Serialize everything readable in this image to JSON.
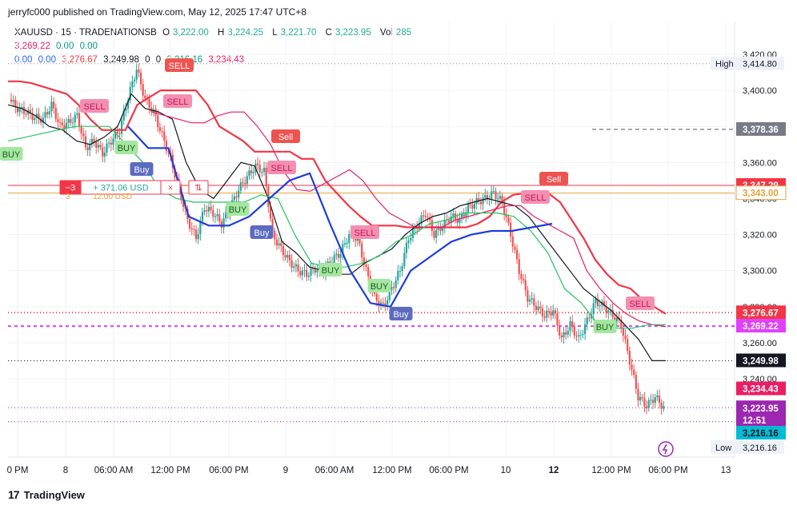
{
  "header": {
    "publisher": "jerryfc000 published on TradingView.com, May 12, 2025 17:47 UTC+8",
    "symbol": "XAUUSD · 15 · TRADENATIONSB",
    "o_label": "O",
    "o": "3,222.00",
    "h_label": "H",
    "h": "3,224.25",
    "l_label": "L",
    "l": "3,221.70",
    "c_label": "C",
    "c": "3,223.95",
    "vol_label": "Vol",
    "vol": "285",
    "ind1": [
      "3,269.22",
      "0.00",
      "0.00"
    ],
    "ind2": [
      "0.00",
      "0.00",
      "3,276.67",
      "3,249.98",
      "0",
      "0",
      "3,216.16",
      "3,234.43"
    ]
  },
  "footer": {
    "brand": "TradingView",
    "logo": "17"
  },
  "position": {
    "qty": "−3",
    "pnl": "+ 371.06 USD",
    "close": "×",
    "reverse": "⇅",
    "under_qty": "3",
    "under_pnl": "12.00 USD"
  },
  "chart_data": {
    "type": "candlestick",
    "symbol": "XAUUSD",
    "interval": "15",
    "ylim": [
      3210,
      3430
    ],
    "y_ticks": [
      3240,
      3260,
      3280,
      3300,
      3320,
      3340,
      3360,
      3380,
      3400,
      3420
    ],
    "x_ticks": [
      "0 PM",
      "8",
      "06:00 AM",
      "12:00 PM",
      "06:00 PM",
      "9",
      "06:00 AM",
      "12:00 PM",
      "06:00 PM",
      "10",
      "12",
      "12:00 PM",
      "06:00 PM",
      "13"
    ],
    "price_path": [
      3395,
      3390,
      3388,
      3385,
      3384,
      3392,
      3380,
      3382,
      3386,
      3368,
      3372,
      3365,
      3372,
      3378,
      3396,
      3412,
      3395,
      3388,
      3375,
      3362,
      3345,
      3328,
      3318,
      3335,
      3332,
      3326,
      3335,
      3345,
      3352,
      3358,
      3355,
      3320,
      3312,
      3305,
      3300,
      3298,
      3301,
      3300,
      3306,
      3310,
      3320,
      3318,
      3300,
      3285,
      3280,
      3290,
      3300,
      3318,
      3325,
      3332,
      3320,
      3325,
      3330,
      3328,
      3335,
      3338,
      3340,
      3343,
      3338,
      3320,
      3300,
      3285,
      3280,
      3275,
      3278,
      3262,
      3270,
      3262,
      3272,
      3283,
      3280,
      3275,
      3270,
      3250,
      3230,
      3225,
      3230,
      3224
    ],
    "lines": [
      {
        "name": "red",
        "color": "#f23645",
        "points": [
          3405,
          3405,
          3404,
          3402,
          3400,
          3398,
          3392,
          3384,
          3378,
          3378,
          3378,
          3392,
          3396,
          3400,
          3400,
          3400,
          3400,
          3392,
          3380,
          3376,
          3372,
          3366,
          3366,
          3366,
          3366,
          3362,
          3362,
          3350,
          3343,
          3336,
          3330,
          3325,
          3325,
          3325,
          3324,
          3324,
          3324,
          3324,
          3324,
          3324,
          3326,
          3330,
          3338,
          3342,
          3343,
          3343,
          3343,
          3338,
          3328,
          3318,
          3306,
          3298,
          3292,
          3290,
          3284,
          3280,
          3276
        ]
      },
      {
        "name": "black",
        "color": "#131722",
        "points": [
          3392,
          3390,
          3386,
          3380,
          3378,
          3372,
          3370,
          3374,
          3380,
          3398,
          3390,
          3388,
          3384,
          3360,
          3345,
          3340,
          3350,
          3360,
          3358,
          3340,
          3316,
          3310,
          3302,
          3300,
          3298,
          3298,
          3304,
          3308,
          3312,
          3320,
          3326,
          3330,
          3332,
          3336,
          3338,
          3340,
          3338,
          3336,
          3330,
          3320,
          3310,
          3300,
          3290,
          3284,
          3278,
          3270,
          3262,
          3250,
          3250
        ]
      },
      {
        "name": "magenta",
        "color": "#e91e63",
        "points": [
          3388,
          3386,
          3384,
          3382,
          3382,
          3386,
          3388,
          3388,
          3380,
          3370,
          3355,
          3345,
          3344,
          3348,
          3352,
          3356,
          3350,
          3340,
          3332,
          3328,
          3324,
          3324,
          3324,
          3328,
          3330,
          3332,
          3334,
          3336,
          3336,
          3330,
          3326,
          3322,
          3318,
          3300,
          3290,
          3282,
          3276,
          3272,
          3270,
          3269
        ]
      },
      {
        "name": "green",
        "color": "#22c55e",
        "points": [
          3372,
          3374,
          3376,
          3378,
          3380,
          3380,
          3380,
          3370,
          3360,
          3345,
          3340,
          3338,
          3338,
          3338,
          3338,
          3342,
          3340,
          3320,
          3304,
          3302,
          3302,
          3304,
          3308,
          3316,
          3320,
          3326,
          3328,
          3332,
          3332,
          3332,
          3330,
          3322,
          3310,
          3290,
          3282,
          3270,
          3268,
          3268,
          3270,
          3270
        ]
      },
      {
        "name": "blue",
        "color": "#1d3bdf",
        "points": [
          3380,
          3368,
          3368,
          3330,
          3325,
          3325,
          3330,
          3340,
          3350,
          3354,
          3326,
          3300,
          3282,
          3280,
          3300,
          3308,
          3316,
          3320,
          3322,
          3322,
          3324,
          3326
        ]
      }
    ],
    "markers": [
      {
        "label": "SELL",
        "kind": "magenta"
      },
      {
        "label": "SELL",
        "kind": "magenta"
      },
      {
        "label": "SELL",
        "kind": "red"
      },
      {
        "label": "BUY",
        "kind": "green"
      },
      {
        "label": "Buy",
        "kind": "blue"
      },
      {
        "label": "Sell",
        "kind": "red"
      },
      {
        "label": "SELL",
        "kind": "magenta"
      },
      {
        "label": "BUY",
        "kind": "green"
      },
      {
        "label": "Buy",
        "kind": "blue"
      },
      {
        "label": "SELL",
        "kind": "magenta"
      },
      {
        "label": "BUY",
        "kind": "green"
      },
      {
        "label": "BUY",
        "kind": "green"
      },
      {
        "label": "BUY",
        "kind": "green"
      },
      {
        "label": "Buy",
        "kind": "blue"
      },
      {
        "label": "Sell",
        "kind": "red"
      },
      {
        "label": "SELL",
        "kind": "magenta"
      },
      {
        "label": "BUY",
        "kind": "green"
      },
      {
        "label": "SELL",
        "kind": "magenta"
      }
    ],
    "price_labels": [
      {
        "text": "3,414.80",
        "tag": "High",
        "style": "tag-light",
        "price": 3414.8
      },
      {
        "text": "3,378.36",
        "style": "gray",
        "price": 3378.36
      },
      {
        "text": "3,347.29",
        "style": "red",
        "price": 3347.29
      },
      {
        "text": "3,343.00",
        "style": "orange",
        "price": 3343
      },
      {
        "text": "3,276.67",
        "style": "red",
        "price": 3276.67
      },
      {
        "text": "3,269.22",
        "style": "magenta",
        "price": 3269.22
      },
      {
        "text": "3,249.98",
        "style": "black",
        "price": 3249.98
      },
      {
        "text": "3,234.43",
        "style": "pink",
        "price": 3234.43
      },
      {
        "text": "3,223.95",
        "style": "purple",
        "price": 3223.95,
        "countdown": "12:51"
      },
      {
        "text": "3,216.16",
        "style": "teal",
        "price": 3216.16
      },
      {
        "text": "3,216.16",
        "tag": "Low",
        "style": "tag-light",
        "price": 3213
      }
    ],
    "hlines": [
      {
        "price": 3414.8,
        "style": "dotted",
        "color": "#888888"
      },
      {
        "price": 3378.36,
        "style": "dashed",
        "color": "#555555"
      },
      {
        "price": 3347.29,
        "style": "solid",
        "color": "#f23645"
      },
      {
        "price": 3343.0,
        "style": "solid",
        "color": "#e6a23c"
      },
      {
        "price": 3276.67,
        "style": "dotted",
        "color": "#f23645"
      },
      {
        "price": 3269.22,
        "style": "dotted",
        "color": "#e040fb"
      },
      {
        "price": 3249.98,
        "style": "dotted",
        "color": "#131722"
      },
      {
        "price": 3223.95,
        "style": "dotted",
        "color": "#9c27b0"
      },
      {
        "price": 3216.16,
        "style": "dotted",
        "color": "#9c27b0"
      }
    ],
    "colors": {
      "up": "#26a69a",
      "down": "#ef5350"
    }
  }
}
